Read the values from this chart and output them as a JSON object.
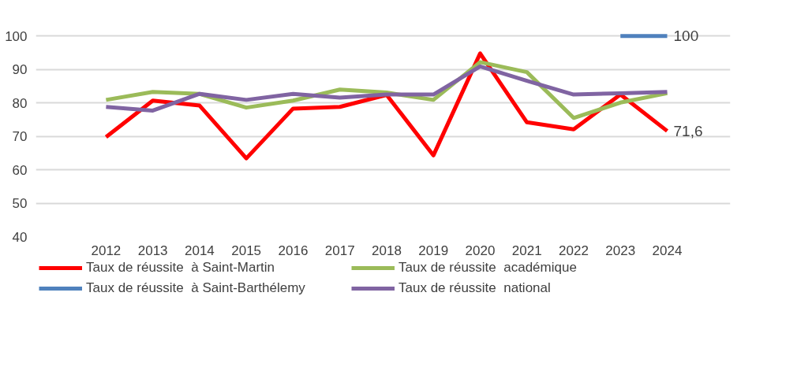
{
  "chart_data": {
    "type": "line",
    "categories": [
      "2012",
      "2013",
      "2014",
      "2015",
      "2016",
      "2017",
      "2018",
      "2019",
      "2020",
      "2021",
      "2022",
      "2023",
      "2024"
    ],
    "ylim": [
      40,
      100
    ],
    "yticks": [
      40,
      50,
      60,
      70,
      80,
      90,
      100
    ],
    "grid": "y",
    "legend": "bottom",
    "marker": "none",
    "series": [
      {
        "name": "Taux de réussite  à Saint-Martin",
        "color": "#ff0000",
        "values": [
          69.8,
          80.7,
          79.2,
          63.4,
          78.3,
          78.8,
          82.4,
          64.3,
          94.8,
          74.2,
          72.1,
          82.5,
          71.6
        ],
        "value_labels": [
          null,
          null,
          null,
          null,
          null,
          null,
          null,
          null,
          null,
          null,
          null,
          null,
          "71,6"
        ]
      },
      {
        "name": "Taux de réussite  à Saint-Barthélemy",
        "color": "#4f81bd",
        "values": [
          null,
          null,
          null,
          null,
          null,
          null,
          null,
          null,
          null,
          null,
          null,
          100,
          100
        ],
        "value_labels": [
          null,
          null,
          null,
          null,
          null,
          null,
          null,
          null,
          null,
          null,
          null,
          null,
          "100"
        ]
      },
      {
        "name": "Taux de réussite  académique",
        "color": "#9bbb59",
        "values": [
          80.9,
          83.3,
          82.7,
          78.6,
          80.7,
          84.0,
          83.1,
          80.9,
          92.2,
          89.2,
          75.5,
          80.1,
          82.9
        ]
      },
      {
        "name": "Taux de réussite  national",
        "color": "#8064a2",
        "values": [
          78.8,
          77.7,
          82.7,
          80.9,
          82.7,
          81.6,
          82.5,
          82.5,
          90.9,
          86.6,
          82.5,
          82.9,
          83.3
        ]
      }
    ]
  }
}
